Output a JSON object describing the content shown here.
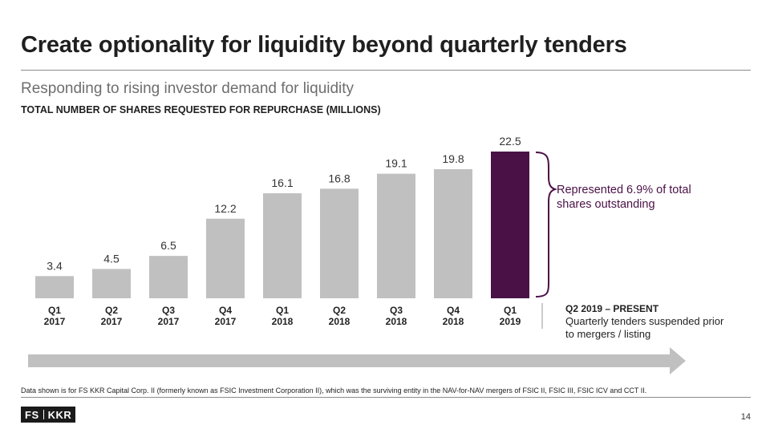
{
  "slide": {
    "title": "Create optionality for liquidity beyond quarterly tenders",
    "subtitle": "Responding to rising investor demand for liquidity",
    "footnote": "Data shown is for FS KKR Capital Corp. II (formerly known as FSIC Investment Corporation II), which was the surviving entity in the NAV-for-NAV mergers of FSIC II, FSIC III, FSIC ICV and CCT II.",
    "page_number": "14",
    "logo": {
      "left": "FS",
      "right": "KKR"
    }
  },
  "callout": {
    "text": "Represented 6.9% of total shares outstanding"
  },
  "note": {
    "heading": "Q2 2019 – PRESENT",
    "body": "Quarterly tenders suspended prior to mergers / listing"
  },
  "colors": {
    "bar": "#c0c0c0",
    "highlight": "#4a1146",
    "arrow": "#c0c0c0"
  },
  "chart_data": {
    "type": "bar",
    "title": "TOTAL NUMBER OF SHARES REQUESTED FOR REPURCHASE (MILLIONS)",
    "categories": [
      [
        "Q1",
        "2017"
      ],
      [
        "Q2",
        "2017"
      ],
      [
        "Q3",
        "2017"
      ],
      [
        "Q4",
        "2017"
      ],
      [
        "Q1",
        "2018"
      ],
      [
        "Q2",
        "2018"
      ],
      [
        "Q3",
        "2018"
      ],
      [
        "Q4",
        "2018"
      ],
      [
        "Q1",
        "2019"
      ]
    ],
    "values": [
      3.4,
      4.5,
      6.5,
      12.2,
      16.1,
      16.8,
      19.1,
      19.8,
      22.5
    ],
    "labels": [
      "3.4",
      "4.5",
      "6.5",
      "12.2",
      "16.1",
      "16.8",
      "19.1",
      "19.8",
      "22.5"
    ],
    "highlight_index": 8,
    "xlabel": "",
    "ylabel": "",
    "ylim": [
      0,
      22.5
    ],
    "grid": false
  }
}
